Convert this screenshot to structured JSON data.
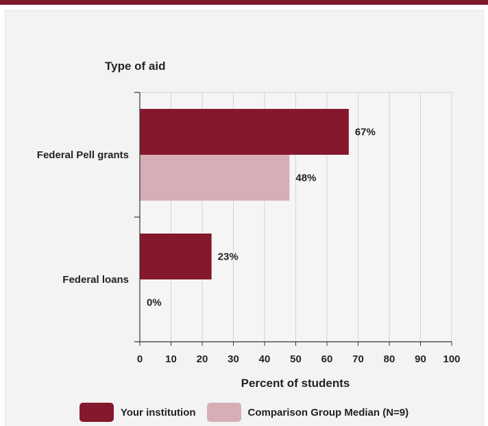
{
  "chart_data": {
    "type": "bar",
    "orientation": "horizontal",
    "title": "Type of aid",
    "xlabel": "Percent of students",
    "categories": [
      "Federal Pell grants",
      "Federal loans"
    ],
    "series": [
      {
        "name": "Your institution",
        "values": [
          67,
          23
        ],
        "labels": [
          "67%",
          "23%"
        ],
        "color": "#85182d"
      },
      {
        "name": "Comparison Group Median (N=9)",
        "values": [
          48,
          0
        ],
        "labels": [
          "48%",
          "0%"
        ],
        "color": "#d7aeb6"
      }
    ],
    "xlim": [
      0,
      100
    ],
    "xticks": [
      0,
      10,
      20,
      30,
      40,
      50,
      60,
      70,
      80,
      90,
      100
    ],
    "grid": true,
    "legend_position": "bottom"
  },
  "colors": {
    "accent": "#7f1a2c",
    "panel_background": "#f3f3f3",
    "plot_background": "#f5f5f5"
  }
}
